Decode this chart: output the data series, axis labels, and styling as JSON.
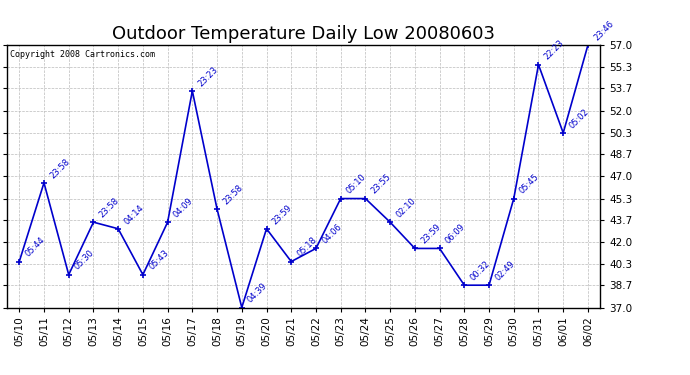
{
  "title": "Outdoor Temperature Daily Low 20080603",
  "copyright": "Copyright 2008 Cartronics.com",
  "x_labels": [
    "05/10",
    "05/11",
    "05/12",
    "05/13",
    "05/14",
    "05/15",
    "05/16",
    "05/17",
    "05/18",
    "05/19",
    "05/20",
    "05/21",
    "05/22",
    "05/23",
    "05/24",
    "05/25",
    "05/26",
    "05/27",
    "05/28",
    "05/29",
    "05/30",
    "05/31",
    "06/01",
    "06/02"
  ],
  "y_values": [
    40.5,
    46.5,
    39.5,
    43.5,
    43.0,
    39.5,
    43.5,
    53.5,
    44.5,
    37.0,
    43.0,
    40.5,
    41.5,
    45.3,
    45.3,
    43.5,
    41.5,
    41.5,
    38.7,
    38.7,
    45.3,
    55.5,
    50.3,
    57.0
  ],
  "point_labels": [
    "05:44",
    "23:58",
    "05:30",
    "23:58",
    "04:14",
    "05:43",
    "04:09",
    "23:23",
    "23:58",
    "04:39",
    "23:59",
    "05:18",
    "04:06",
    "05:10",
    "23:55",
    "02:10",
    "23:59",
    "06:09",
    "00:32",
    "02:49",
    "05:45",
    "22:23",
    "05:02",
    "23:46"
  ],
  "line_color": "#0000cc",
  "marker_color": "#0000cc",
  "background_color": "#ffffff",
  "grid_color": "#bbbbbb",
  "y_min": 37.0,
  "y_max": 57.0,
  "y_ticks": [
    37.0,
    38.7,
    40.3,
    42.0,
    43.7,
    45.3,
    47.0,
    48.7,
    50.3,
    52.0,
    53.7,
    55.3,
    57.0
  ],
  "title_fontsize": 13,
  "tick_fontsize": 7.5,
  "point_label_fontsize": 6,
  "copyright_fontsize": 6
}
